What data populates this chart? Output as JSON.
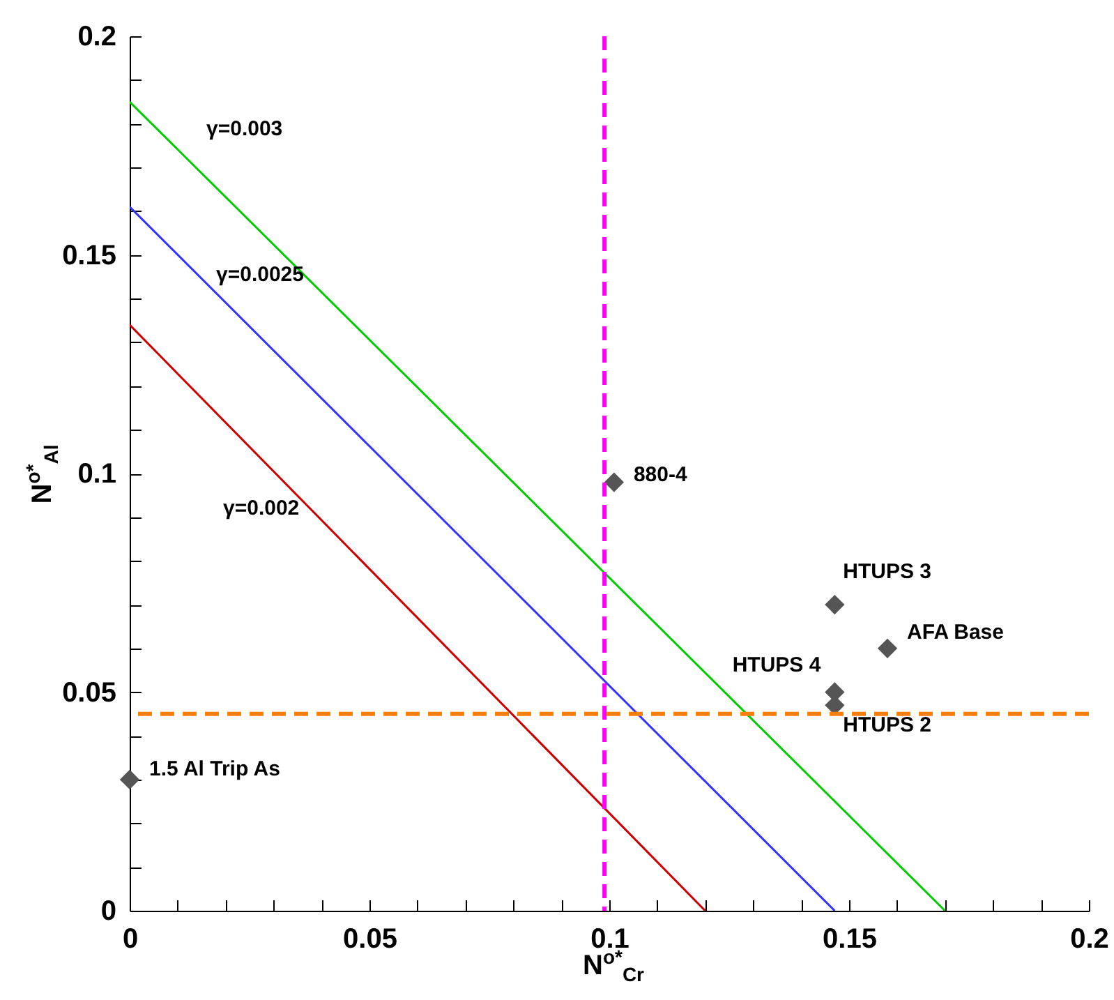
{
  "chart_data": {
    "type": "line",
    "xlabel": "N$^{o*}$$_{Cr}$",
    "ylabel": "N$^{o*}$$_{Al}$",
    "xlim": [
      0,
      0.2
    ],
    "ylim": [
      0,
      0.2
    ],
    "xticks": [
      0,
      {
        "value": 0.01,
        "label": null
      },
      {
        "value": 0.02,
        "label": null
      },
      {
        "value": 0.03,
        "label": null
      },
      {
        "value": 0.04,
        "label": null
      },
      0.05,
      {
        "value": 0.06,
        "label": null
      },
      {
        "value": 0.07,
        "label": null
      },
      {
        "value": 0.08,
        "label": null
      },
      {
        "value": 0.09,
        "label": null
      },
      0.1,
      {
        "value": 0.11,
        "label": null
      },
      {
        "value": 0.12,
        "label": null
      },
      {
        "value": 0.13,
        "label": null
      },
      {
        "value": 0.14,
        "label": null
      },
      0.15,
      {
        "value": 0.16,
        "label": null
      },
      {
        "value": 0.17,
        "label": null
      },
      {
        "value": 0.18,
        "label": null
      },
      {
        "value": 0.19,
        "label": null
      },
      0.2
    ],
    "yticks": [
      0,
      {
        "value": 0.01,
        "label": null
      },
      {
        "value": 0.02,
        "label": null
      },
      {
        "value": 0.03,
        "label": null
      },
      {
        "value": 0.04,
        "label": null
      },
      0.05,
      {
        "value": 0.06,
        "label": null
      },
      {
        "value": 0.07,
        "label": null
      },
      {
        "value": 0.08,
        "label": null
      },
      {
        "value": 0.09,
        "label": null
      },
      0.1,
      {
        "value": 0.11,
        "label": null
      },
      {
        "value": 0.12,
        "label": null
      },
      {
        "value": 0.13,
        "label": null
      },
      {
        "value": 0.14,
        "label": null
      },
      0.15,
      {
        "value": 0.16,
        "label": null
      },
      {
        "value": 0.17,
        "label": null
      },
      {
        "value": 0.18,
        "label": null
      },
      {
        "value": 0.19,
        "label": null
      },
      0.2
    ],
    "grid": false,
    "line_style": "solid",
    "series": [
      {
        "name": "γ=0.003",
        "color": "#00cc00",
        "x": [
          0,
          0.17
        ],
        "values": [
          0.185,
          0
        ]
      },
      {
        "name": "γ=0.0025",
        "color": "#3333ff",
        "x": [
          0,
          0.147
        ],
        "values": [
          0.161,
          0
        ]
      },
      {
        "name": "γ=0.002",
        "color": "#cc0000",
        "x": [
          0,
          0.12
        ],
        "values": [
          0.134,
          0
        ]
      },
      {
        "type": "scatter",
        "marker": "diamond",
        "color": "#555555",
        "x": [
          0,
          0.101,
          0.147,
          0.158,
          0.147,
          0.147
        ],
        "values": [
          0.03,
          0.098,
          0.07,
          0.06,
          0.05,
          0.047
        ]
      }
    ],
    "ref_lines": [
      {
        "axis": "x",
        "value": 0.099,
        "color": "#ff00ff",
        "line_style": "dashed"
      },
      {
        "axis": "y",
        "value": 0.045,
        "color": "#ff8000",
        "line_style": "dashed"
      }
    ],
    "annotations": [
      {
        "text": "1.5 Al Trip As",
        "x": 0,
        "y": 0.03
      },
      {
        "text": "880-4",
        "x": 0.101,
        "y": 0.098
      },
      {
        "text": "HTUPS 3",
        "x": 0.147,
        "y": 0.07
      },
      {
        "text": "AFA Base",
        "x": 0.158,
        "y": 0.06
      },
      {
        "text": "HTUPS 4",
        "x": 0.147,
        "y": 0.05
      },
      {
        "text": "HTUPS 2",
        "x": 0.147,
        "y": 0.047
      }
    ]
  }
}
